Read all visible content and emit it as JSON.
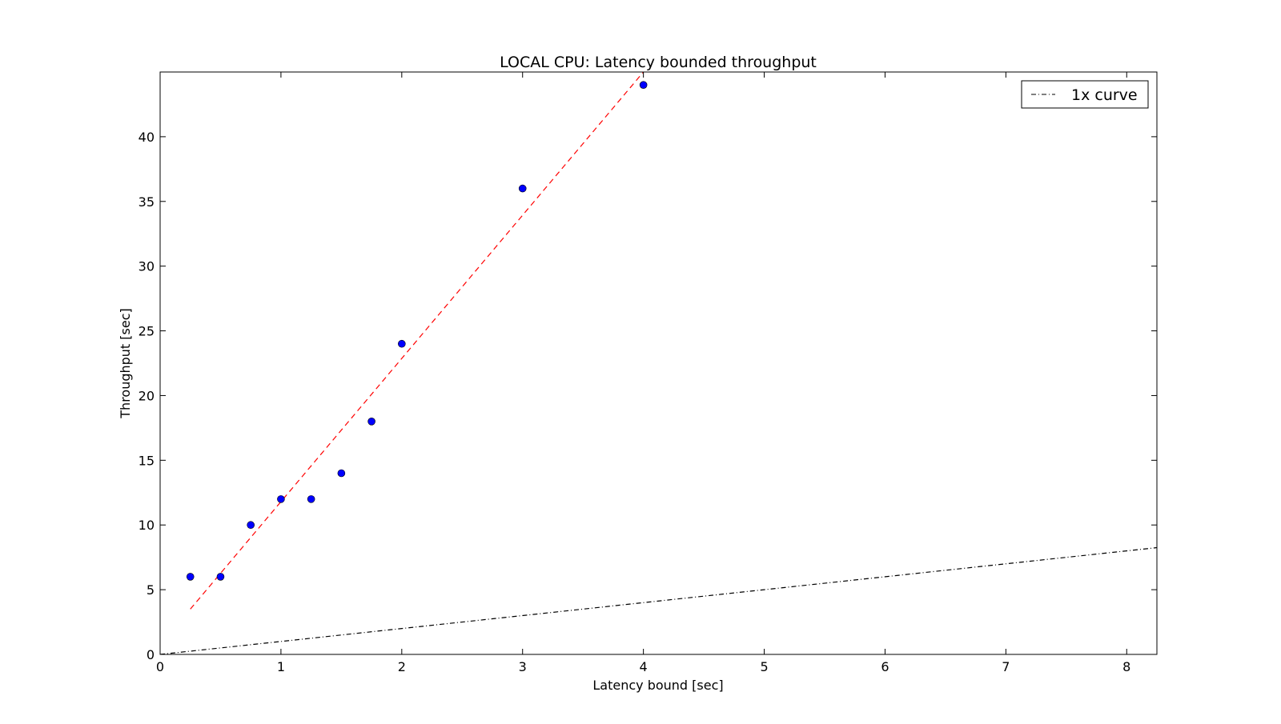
{
  "chart_data": {
    "type": "scatter",
    "title": "LOCAL CPU: Latency bounded throughput",
    "xlabel": "Latency bound [sec]",
    "ylabel": "Throughput [sec]",
    "xlim": [
      0,
      8.25
    ],
    "ylim": [
      0,
      45
    ],
    "x_ticks": [
      0,
      1,
      2,
      3,
      4,
      5,
      6,
      7,
      8
    ],
    "y_ticks": [
      0,
      5,
      10,
      15,
      20,
      25,
      30,
      35,
      40
    ],
    "x_tick_labels": [
      "0",
      "1",
      "2",
      "3",
      "4",
      "5",
      "6",
      "7",
      "8"
    ],
    "y_tick_labels": [
      "0",
      "5",
      "10",
      "15",
      "20",
      "25",
      "30",
      "35",
      "40"
    ],
    "grid": false,
    "legend_position": "top-right",
    "series": [
      {
        "kind": "scatter",
        "color": "#0000ff",
        "x": [
          0.25,
          0.5,
          0.75,
          1.0,
          1.25,
          1.5,
          1.75,
          2.0,
          3.0,
          4.0
        ],
        "y": [
          6,
          6,
          10,
          12,
          12,
          14,
          18,
          24,
          36,
          44
        ]
      },
      {
        "kind": "fit-line",
        "style": "dashed",
        "color": "#ff0000",
        "x": [
          0.25,
          4.0
        ],
        "y": [
          3.5,
          45
        ]
      },
      {
        "kind": "reference-line",
        "name": "1x curve",
        "style": "dashdot",
        "color": "#000000",
        "x": [
          0,
          8.25
        ],
        "y": [
          0,
          8.25
        ]
      }
    ]
  }
}
